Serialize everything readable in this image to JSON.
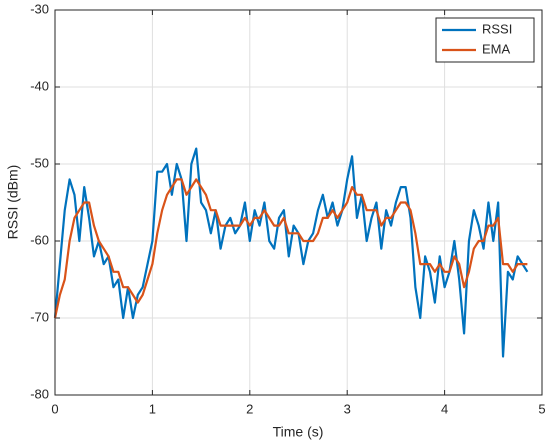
{
  "chart_data": {
    "type": "line",
    "xlabel": "Time (s)",
    "ylabel": "RSSI (dBm)",
    "x": [
      0,
      0.05,
      0.1,
      0.15,
      0.2,
      0.25,
      0.3,
      0.35,
      0.4,
      0.45,
      0.5,
      0.55,
      0.6,
      0.65,
      0.7,
      0.75,
      0.8,
      0.85,
      0.9,
      0.95,
      1,
      1.05,
      1.1,
      1.15,
      1.2,
      1.25,
      1.3,
      1.35,
      1.4,
      1.45,
      1.5,
      1.55,
      1.6,
      1.65,
      1.7,
      1.75,
      1.8,
      1.85,
      1.9,
      1.95,
      2,
      2.05,
      2.1,
      2.15,
      2.2,
      2.25,
      2.3,
      2.35,
      2.4,
      2.45,
      2.5,
      2.55,
      2.6,
      2.65,
      2.7,
      2.75,
      2.8,
      2.85,
      2.9,
      2.95,
      3,
      3.05,
      3.1,
      3.15,
      3.2,
      3.25,
      3.3,
      3.35,
      3.4,
      3.45,
      3.5,
      3.55,
      3.6,
      3.65,
      3.7,
      3.75,
      3.8,
      3.85,
      3.9,
      3.95,
      4,
      4.05,
      4.1,
      4.15,
      4.2,
      4.25,
      4.3,
      4.35,
      4.4,
      4.45,
      4.5,
      4.55,
      4.6,
      4.65,
      4.7,
      4.75,
      4.8,
      4.85
    ],
    "series": [
      {
        "name": "RSSI",
        "color": "#0072bd",
        "values": [
          -70,
          -63,
          -56,
          -52,
          -54,
          -60,
          -53,
          -57,
          -62,
          -60,
          -63,
          -62,
          -66,
          -65,
          -70,
          -66,
          -70,
          -67,
          -66,
          -63,
          -60,
          -51,
          -51,
          -50,
          -54,
          -50,
          -52,
          -60,
          -50,
          -48,
          -55,
          -56,
          -59,
          -56,
          -61,
          -58,
          -57,
          -59,
          -58,
          -55,
          -60,
          -56,
          -58,
          -55,
          -60,
          -61,
          -57,
          -56,
          -62,
          -58,
          -59,
          -63,
          -60,
          -59,
          -56,
          -54,
          -57,
          -55,
          -58,
          -56,
          -52,
          -49,
          -57,
          -54,
          -60,
          -57,
          -55,
          -61,
          -56,
          -58,
          -55,
          -53,
          -53,
          -57,
          -66,
          -70,
          -62,
          -64,
          -68,
          -62,
          -66,
          -64,
          -60,
          -65,
          -72,
          -60,
          -56,
          -58,
          -61,
          -55,
          -60,
          -55,
          -75,
          -64,
          -65,
          -62,
          -63,
          -64
        ]
      },
      {
        "name": "EMA",
        "color": "#d95319",
        "values": [
          -70,
          -67,
          -65,
          -60,
          -57,
          -56,
          -55,
          -55,
          -58,
          -60,
          -61,
          -62,
          -64,
          -64,
          -66,
          -66,
          -67,
          -68,
          -67,
          -65,
          -63,
          -59,
          -56,
          -54,
          -53,
          -52,
          -52,
          -54,
          -53,
          -52,
          -53,
          -54,
          -56,
          -56,
          -58,
          -58,
          -58,
          -58,
          -58,
          -57,
          -58,
          -57,
          -57,
          -56,
          -57,
          -58,
          -58,
          -57,
          -59,
          -59,
          -59,
          -60,
          -60,
          -60,
          -59,
          -57,
          -57,
          -56,
          -57,
          -56,
          -55,
          -53,
          -54,
          -54,
          -56,
          -56,
          -56,
          -58,
          -57,
          -57,
          -56,
          -55,
          -55,
          -56,
          -59,
          -63,
          -63,
          -63,
          -64,
          -63,
          -64,
          -64,
          -62,
          -63,
          -66,
          -64,
          -61,
          -60,
          -60,
          -58,
          -58,
          -57,
          -63,
          -63,
          -64,
          -63,
          -63,
          -63
        ]
      }
    ],
    "xlim": [
      0,
      5
    ],
    "xticks": [
      0,
      1,
      2,
      3,
      4,
      5
    ],
    "ylim": [
      -80,
      -30
    ],
    "yticks": [
      -80,
      -70,
      -60,
      -50,
      -40,
      -30
    ],
    "grid": true,
    "legend": "top-right"
  }
}
